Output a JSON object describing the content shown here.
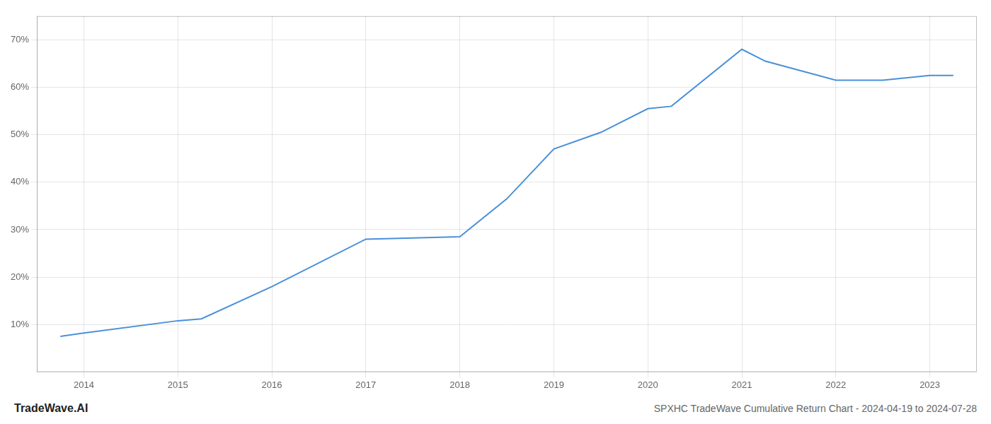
{
  "chart_data": {
    "type": "line",
    "title": "SPXHC TradeWave Cumulative Return Chart - 2024-04-19 to 2024-07-28",
    "annotations": [
      "TradeWave.AI"
    ],
    "x": [
      2013.75,
      2014.0,
      2015.0,
      2015.25,
      2016.0,
      2017.0,
      2018.0,
      2018.5,
      2019.0,
      2019.5,
      2020.0,
      2020.25,
      2021.0,
      2021.25,
      2022.0,
      2022.5,
      2023.0,
      2023.25
    ],
    "values": [
      7.5,
      8.2,
      10.8,
      11.2,
      18.0,
      28.0,
      28.5,
      36.5,
      47.0,
      50.5,
      55.5,
      56.0,
      68.0,
      65.5,
      61.5,
      61.5,
      62.5,
      62.5
    ],
    "color": "#4a90d9",
    "xlim": [
      2013.5,
      2023.5
    ],
    "ylim": [
      0,
      75
    ],
    "xticks": [
      2014,
      2015,
      2016,
      2017,
      2018,
      2019,
      2020,
      2021,
      2022,
      2023
    ],
    "yticks": [
      {
        "value": 10,
        "label": "10%"
      },
      {
        "value": 20,
        "label": "20%"
      },
      {
        "value": 30,
        "label": "30%"
      },
      {
        "value": 40,
        "label": "40%"
      },
      {
        "value": 50,
        "label": "50%"
      },
      {
        "value": 60,
        "label": "60%"
      },
      {
        "value": 70,
        "label": "70%"
      }
    ],
    "grid": true
  }
}
